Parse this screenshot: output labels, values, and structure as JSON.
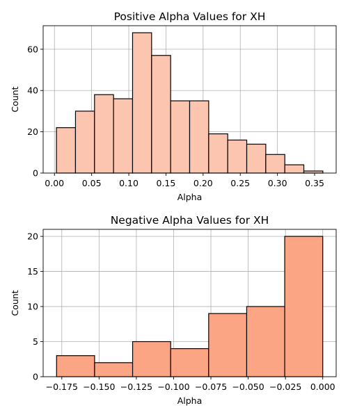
{
  "figure": {
    "background": "#ffffff"
  },
  "chart_data": [
    {
      "type": "bar",
      "title": "Positive Alpha Values for XH",
      "xlabel": "Alpha",
      "ylabel": "Count",
      "bin_edges": [
        0.0027,
        0.0283,
        0.0539,
        0.0795,
        0.1051,
        0.1307,
        0.1563,
        0.1819,
        0.2075,
        0.2331,
        0.2587,
        0.2843,
        0.3099,
        0.3355,
        0.3611
      ],
      "values": [
        22,
        30,
        38,
        36,
        68,
        57,
        35,
        35,
        19,
        16,
        14,
        9,
        4,
        1
      ],
      "xlim": [
        -0.0152,
        0.379
      ],
      "ylim": [
        0,
        71.4
      ],
      "xticks": [
        0.0,
        0.05,
        0.1,
        0.15,
        0.2,
        0.25,
        0.3,
        0.35
      ],
      "xtick_labels": [
        "0.00",
        "0.05",
        "0.10",
        "0.15",
        "0.20",
        "0.25",
        "0.30",
        "0.35"
      ],
      "yticks": [
        0,
        20,
        40,
        60
      ],
      "ytick_labels": [
        "0",
        "20",
        "40",
        "60"
      ],
      "grid": true,
      "bar_color": "#fcc5b0",
      "edge_color": "#000000",
      "grid_color": "#b0b0b0"
    },
    {
      "type": "bar",
      "title": "Negative Alpha Values for XH",
      "xlabel": "Alpha",
      "ylabel": "Count",
      "bin_edges": [
        -0.1785,
        -0.153,
        -0.1275,
        -0.102,
        -0.0765,
        -0.051,
        -0.0255,
        0.0
      ],
      "values": [
        3,
        2,
        5,
        4,
        9,
        10,
        20
      ],
      "xlim": [
        -0.1875,
        0.009
      ],
      "ylim": [
        0,
        21
      ],
      "xticks": [
        -0.175,
        -0.15,
        -0.125,
        -0.1,
        -0.075,
        -0.05,
        -0.025,
        0.0
      ],
      "xtick_labels": [
        "−0.175",
        "−0.150",
        "−0.125",
        "−0.100",
        "−0.075",
        "−0.050",
        "−0.025",
        "0.000"
      ],
      "yticks": [
        0,
        5,
        10,
        15,
        20
      ],
      "ytick_labels": [
        "0",
        "5",
        "10",
        "15",
        "20"
      ],
      "grid": true,
      "bar_color": "#fca584",
      "edge_color": "#000000",
      "grid_color": "#b0b0b0"
    }
  ]
}
